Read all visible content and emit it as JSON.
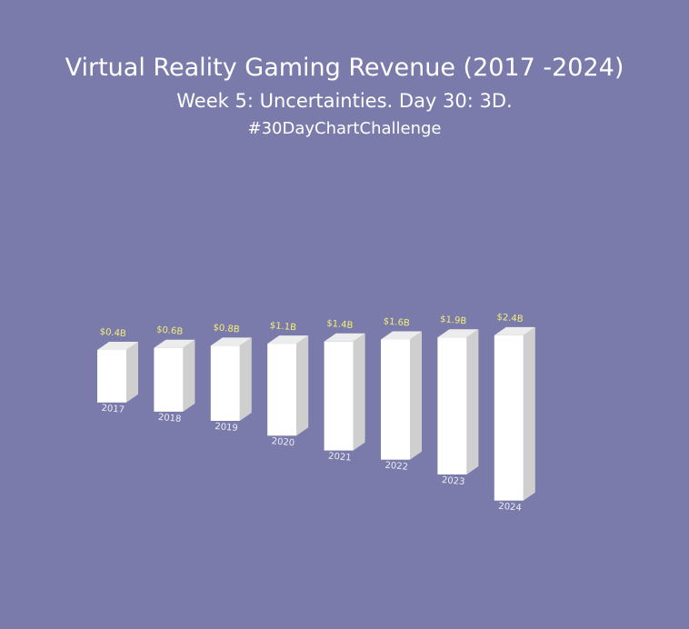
{
  "header": {
    "title": "Virtual Reality Gaming Revenue (2017 -2024)",
    "subtitle": "Week 5: Uncertainties. Day 30: 3D.",
    "hashtag": "#30DayChartChallenge"
  },
  "colors": {
    "background": "#7b7bab",
    "bar_front": "#ffffff",
    "bar_side": "#cfcfcf",
    "bar_top": "#ececec",
    "value_label": "#f3ee7a",
    "category_label": "#ececf4"
  },
  "chart_data": {
    "type": "bar",
    "style": "3d",
    "categories": [
      "2017",
      "2018",
      "2019",
      "2020",
      "2021",
      "2022",
      "2023",
      "2024"
    ],
    "values": [
      0.4,
      0.6,
      0.8,
      1.1,
      1.4,
      1.6,
      1.9,
      2.4
    ],
    "value_labels": [
      "$0.4B",
      "$0.6B",
      "$0.8B",
      "$1.1B",
      "$1.4B",
      "$1.6B",
      "$1.9B",
      "$2.4B"
    ],
    "unit": "billion USD",
    "grid": false,
    "legend": false
  }
}
